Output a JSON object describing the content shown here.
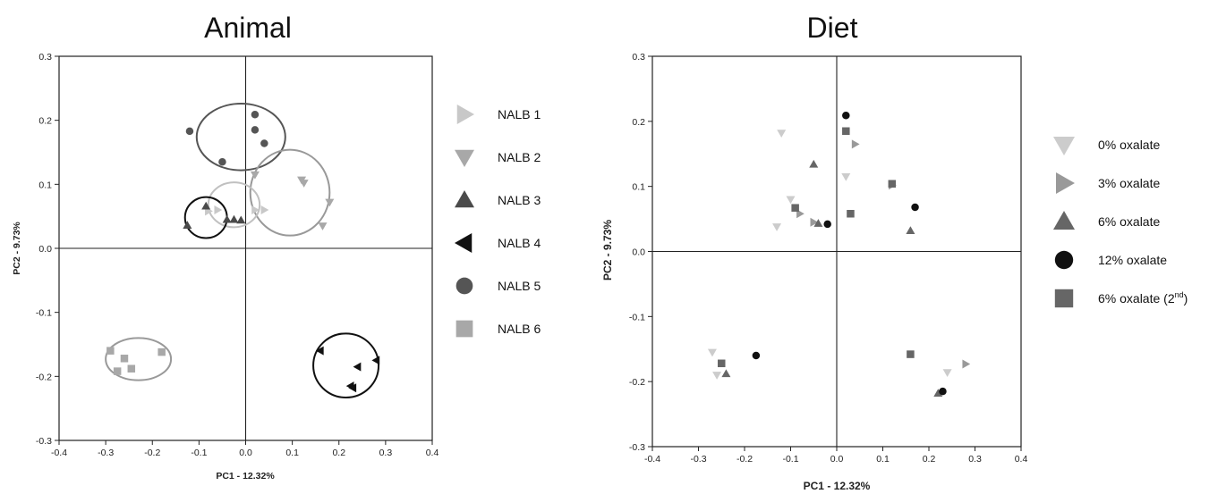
{
  "chart_data": [
    {
      "type": "scatter",
      "title": "Animal",
      "xlabel": "PC1 - 12.32%",
      "ylabel": "PC2 -  9.73%",
      "xlim": [
        -0.4,
        0.4
      ],
      "ylim": [
        -0.3,
        0.3
      ],
      "x_ticks": [
        "-0.4",
        "-0.3",
        "-0.2",
        "-0.1",
        "0.0",
        "0.1",
        "0.2",
        "0.3",
        "0.4"
      ],
      "y_ticks": [
        "-0.3",
        "-0.2",
        "-0.1",
        "0.0",
        "0.1",
        "0.2",
        "0.3"
      ],
      "grid": false,
      "legend": "right",
      "series": [
        {
          "name": "NALB 1",
          "marker": "triangle-right",
          "color": "#c8c8c8",
          "points": [
            [
              -0.08,
              0.058
            ],
            [
              -0.06,
              0.06
            ],
            [
              0.02,
              0.06
            ],
            [
              0.04,
              0.06
            ]
          ]
        },
        {
          "name": "NALB 2",
          "marker": "triangle-down",
          "color": "#a8a8a8",
          "points": [
            [
              0.02,
              0.115
            ],
            [
              0.12,
              0.107
            ],
            [
              0.125,
              0.102
            ],
            [
              0.165,
              0.035
            ],
            [
              0.18,
              0.072
            ]
          ]
        },
        {
          "name": "NALB 3",
          "marker": "triangle-up",
          "color": "#4a4a4a",
          "points": [
            [
              -0.125,
              0.036
            ],
            [
              -0.085,
              0.066
            ],
            [
              -0.04,
              0.045
            ],
            [
              -0.025,
              0.045
            ],
            [
              -0.01,
              0.044
            ]
          ]
        },
        {
          "name": "NALB 4",
          "marker": "triangle-left",
          "color": "#111111",
          "points": [
            [
              0.16,
              -0.16
            ],
            [
              0.24,
              -0.185
            ],
            [
              0.28,
              -0.175
            ],
            [
              0.225,
              -0.215
            ],
            [
              0.23,
              -0.218
            ]
          ]
        },
        {
          "name": "NALB 5",
          "marker": "circle",
          "color": "#555555",
          "points": [
            [
              -0.12,
              0.183
            ],
            [
              -0.05,
              0.135
            ],
            [
              0.02,
              0.209
            ],
            [
              0.02,
              0.185
            ],
            [
              0.04,
              0.164
            ]
          ]
        },
        {
          "name": "NALB 6",
          "marker": "square",
          "color": "#a8a8a8",
          "points": [
            [
              -0.29,
              -0.16
            ],
            [
              -0.275,
              -0.192
            ],
            [
              -0.26,
              -0.172
            ],
            [
              -0.245,
              -0.188
            ],
            [
              -0.18,
              -0.162
            ]
          ]
        }
      ],
      "ellipses": [
        {
          "color": "#555555",
          "center": [
            -0.01,
            0.174
          ],
          "radii": [
            0.095,
            0.052
          ]
        },
        {
          "color": "#999999",
          "center": [
            0.095,
            0.087
          ],
          "radii": [
            0.085,
            0.067
          ]
        },
        {
          "color": "#c0c0c0",
          "center": [
            -0.025,
            0.068
          ],
          "radii": [
            0.055,
            0.035
          ]
        },
        {
          "color": "#111111",
          "center": [
            -0.085,
            0.048
          ],
          "radii": [
            0.045,
            0.032
          ]
        },
        {
          "color": "#111111",
          "center": [
            0.215,
            -0.183
          ],
          "radii": [
            0.07,
            0.05
          ]
        },
        {
          "color": "#999999",
          "center": [
            -0.23,
            -0.173
          ],
          "radii": [
            0.07,
            0.033
          ]
        }
      ]
    },
    {
      "type": "scatter",
      "title": "Diet",
      "xlabel": "PC1 - 12.32%",
      "ylabel": "PC2 - 9.73%",
      "xlim": [
        -0.4,
        0.4
      ],
      "ylim": [
        -0.3,
        0.3
      ],
      "x_ticks": [
        "-0.4",
        "-0.3",
        "-0.2",
        "-0.1",
        "0.0",
        "0.1",
        "0.2",
        "0.3",
        "0.4"
      ],
      "y_ticks": [
        "-0.3",
        "-0.2",
        "-0.1",
        "0.0",
        "0.1",
        "0.2",
        "0.3"
      ],
      "grid": false,
      "legend": "right",
      "series": [
        {
          "name": "0% oxalate",
          "marker": "triangle-down",
          "color": "#cccccc",
          "points": [
            [
              -0.12,
              0.182
            ],
            [
              -0.1,
              0.08
            ],
            [
              -0.13,
              0.038
            ],
            [
              0.02,
              0.115
            ],
            [
              -0.27,
              -0.155
            ],
            [
              -0.26,
              -0.19
            ],
            [
              0.24,
              -0.186
            ]
          ]
        },
        {
          "name": "3% oxalate",
          "marker": "triangle-right",
          "color": "#999999",
          "points": [
            [
              0.04,
              0.165
            ],
            [
              -0.08,
              0.058
            ],
            [
              -0.05,
              0.045
            ],
            [
              0.12,
              0.102
            ],
            [
              0.28,
              -0.173
            ]
          ]
        },
        {
          "name": "6% oxalate",
          "marker": "triangle-up",
          "color": "#666666",
          "points": [
            [
              -0.05,
              0.134
            ],
            [
              -0.04,
              0.043
            ],
            [
              0.16,
              0.032
            ],
            [
              -0.24,
              -0.188
            ],
            [
              0.22,
              -0.218
            ]
          ]
        },
        {
          "name": "12% oxalate",
          "marker": "circle",
          "color": "#111111",
          "points": [
            [
              0.02,
              0.209
            ],
            [
              -0.02,
              0.042
            ],
            [
              0.17,
              0.068
            ],
            [
              -0.175,
              -0.16
            ],
            [
              0.23,
              -0.215
            ]
          ]
        },
        {
          "name": "6% oxalate",
          "name_sup": "nd",
          "name_pre": "(2",
          "name_post": ")",
          "marker": "square",
          "color": "#666666",
          "points": [
            [
              0.02,
              0.185
            ],
            [
              -0.09,
              0.067
            ],
            [
              0.03,
              0.058
            ],
            [
              0.12,
              0.104
            ],
            [
              -0.25,
              -0.172
            ],
            [
              0.16,
              -0.158
            ]
          ]
        }
      ]
    }
  ]
}
